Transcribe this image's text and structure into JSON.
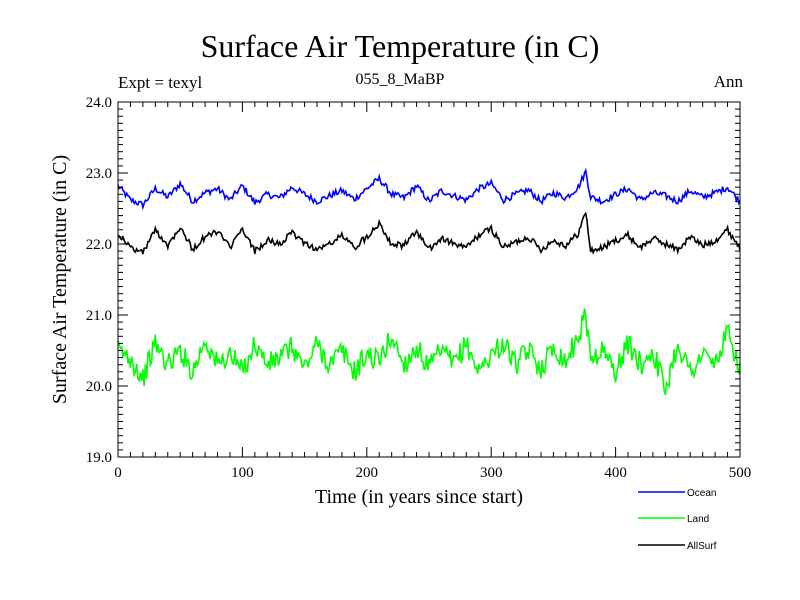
{
  "chart_data": {
    "type": "line",
    "title": "Surface Air Temperature (in C)",
    "subtitle": "055_8_MaBP",
    "left_label": "Expt = texyl",
    "right_label": "Ann",
    "xlabel": "Time (in years since start)",
    "ylabel": "Surface Air Temperature (in C)",
    "xlim": [
      0,
      500
    ],
    "ylim": [
      19.0,
      24.0
    ],
    "xticks": [
      0,
      100,
      200,
      300,
      400,
      500
    ],
    "xtick_labels": [
      "0",
      "100",
      "200",
      "300",
      "400",
      "500"
    ],
    "yticks": [
      19.0,
      20.0,
      21.0,
      22.0,
      23.0,
      24.0
    ],
    "ytick_labels": [
      "19.0",
      "20.0",
      "21.0",
      "22.0",
      "23.0",
      "24.0"
    ],
    "grid": false,
    "legend_position": "bottom-right, below plot",
    "series": [
      {
        "name": "Ocean",
        "color": "#0000ff",
        "x": [
          0,
          10,
          20,
          30,
          40,
          50,
          60,
          70,
          80,
          90,
          100,
          110,
          120,
          130,
          140,
          150,
          160,
          170,
          180,
          190,
          200,
          210,
          220,
          230,
          240,
          250,
          260,
          270,
          280,
          290,
          300,
          310,
          320,
          330,
          340,
          350,
          360,
          370,
          376,
          380,
          390,
          400,
          410,
          420,
          430,
          440,
          450,
          460,
          470,
          480,
          490,
          500
        ],
        "values": [
          22.82,
          22.62,
          22.55,
          22.78,
          22.66,
          22.85,
          22.6,
          22.72,
          22.78,
          22.62,
          22.82,
          22.58,
          22.7,
          22.65,
          22.8,
          22.7,
          22.6,
          22.68,
          22.75,
          22.63,
          22.78,
          22.92,
          22.7,
          22.65,
          22.82,
          22.6,
          22.75,
          22.68,
          22.62,
          22.78,
          22.85,
          22.62,
          22.7,
          22.76,
          22.6,
          22.72,
          22.65,
          22.8,
          23.02,
          22.66,
          22.6,
          22.7,
          22.78,
          22.62,
          22.72,
          22.68,
          22.6,
          22.75,
          22.66,
          22.72,
          22.8,
          22.6
        ]
      },
      {
        "name": "Land",
        "color": "#00ff00",
        "x": [
          0,
          10,
          20,
          30,
          40,
          50,
          60,
          70,
          80,
          90,
          100,
          110,
          120,
          130,
          140,
          150,
          160,
          170,
          180,
          190,
          200,
          210,
          220,
          230,
          240,
          250,
          260,
          270,
          280,
          290,
          300,
          310,
          320,
          330,
          340,
          350,
          360,
          370,
          376,
          380,
          390,
          400,
          410,
          420,
          430,
          440,
          450,
          460,
          470,
          480,
          490,
          500
        ],
        "values": [
          20.5,
          20.4,
          20.1,
          20.6,
          20.3,
          20.5,
          20.2,
          20.65,
          20.3,
          20.45,
          20.2,
          20.6,
          20.3,
          20.4,
          20.55,
          20.25,
          20.6,
          20.3,
          20.5,
          20.2,
          20.45,
          20.35,
          20.7,
          20.3,
          20.55,
          20.25,
          20.5,
          20.3,
          20.6,
          20.2,
          20.45,
          20.6,
          20.3,
          20.5,
          20.25,
          20.55,
          20.35,
          20.7,
          21.0,
          20.4,
          20.5,
          20.2,
          20.6,
          20.3,
          20.5,
          19.95,
          20.6,
          20.2,
          20.45,
          20.3,
          20.75,
          20.25
        ]
      },
      {
        "name": "AllSurf",
        "color": "#000000",
        "x": [
          0,
          10,
          20,
          30,
          40,
          50,
          60,
          70,
          80,
          90,
          100,
          110,
          120,
          130,
          140,
          150,
          160,
          170,
          180,
          190,
          200,
          210,
          220,
          230,
          240,
          250,
          260,
          270,
          280,
          290,
          300,
          310,
          320,
          330,
          340,
          350,
          360,
          370,
          376,
          380,
          390,
          400,
          410,
          420,
          430,
          440,
          450,
          460,
          470,
          480,
          490,
          500
        ],
        "values": [
          22.15,
          21.95,
          21.88,
          22.2,
          21.98,
          22.25,
          21.92,
          22.1,
          22.18,
          21.95,
          22.2,
          21.9,
          22.05,
          22.0,
          22.15,
          22.02,
          21.92,
          22.0,
          22.12,
          21.95,
          22.1,
          22.3,
          22.0,
          21.98,
          22.18,
          21.92,
          22.08,
          22.0,
          21.95,
          22.12,
          22.22,
          21.95,
          22.03,
          22.1,
          21.92,
          22.05,
          21.98,
          22.15,
          22.45,
          21.9,
          21.95,
          22.05,
          22.12,
          21.95,
          22.08,
          22.0,
          21.92,
          22.1,
          21.98,
          22.05,
          22.2,
          21.95
        ]
      }
    ]
  }
}
